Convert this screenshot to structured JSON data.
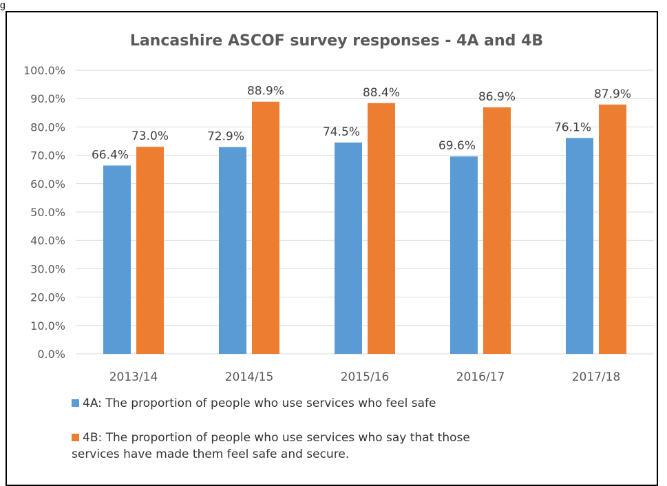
{
  "chart_data": {
    "type": "bar",
    "title": "Lancashire ASCOF survey responses - 4A and 4B",
    "categories": [
      "2013/14",
      "2014/15",
      "2015/16",
      "2016/17",
      "2017/18"
    ],
    "series": [
      {
        "name": "4A: The proportion of people who use services who feel safe",
        "values": [
          66.4,
          72.9,
          74.5,
          69.6,
          76.1
        ],
        "labels": [
          "66.4%",
          "72.9%",
          "74.5%",
          "69.6%",
          "76.1%"
        ],
        "color": "#5b9bd5"
      },
      {
        "name": "4B: The proportion of people who use services who say that those services have made them feel safe and secure.",
        "values": [
          73.0,
          88.9,
          88.4,
          86.9,
          87.9
        ],
        "labels": [
          "73.0%",
          "88.9%",
          "88.4%",
          "86.9%",
          "87.9%"
        ],
        "color": "#ed7d31"
      }
    ],
    "ylim": [
      0,
      100
    ],
    "yticks": [
      "0.0%",
      "10.0%",
      "20.0%",
      "30.0%",
      "40.0%",
      "50.0%",
      "60.0%",
      "70.0%",
      "80.0%",
      "90.0%",
      "100.0%"
    ],
    "grid": true,
    "legend_position": "bottom-left",
    "gridline_color": "#d9d9d9"
  },
  "top_mark": "g"
}
